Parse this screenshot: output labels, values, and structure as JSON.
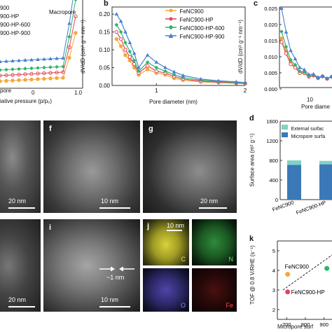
{
  "panels": {
    "a": {
      "legend": [
        "900",
        "900-HP",
        "900-HP-600",
        "900-HP-900"
      ],
      "annotation_macropore": "Macropore",
      "annotation_left": "pore",
      "xlabel": "iative pressure (p/p₀)",
      "xticks": [
        "0",
        "1.0"
      ]
    },
    "b": {
      "label": "b",
      "xlabel": "Pore diameter (nm)",
      "ylabel": "dV/dD (cm³ g⁻¹ nm⁻¹)",
      "yticks": [
        "0.20",
        "0.15",
        "0.10",
        "0.05",
        "0.00"
      ],
      "xticks": [
        "1",
        "2"
      ]
    },
    "c": {
      "label": "c",
      "ylabel": "dV/dD (cm³ g⁻¹ nm⁻¹)",
      "xlabel": "Pore diame",
      "yticks": [
        "0.025",
        "0.020",
        "0.015",
        "0.010",
        "0.005",
        "0.000"
      ],
      "xticks": [
        "10"
      ]
    },
    "d": {
      "label": "d",
      "legend": [
        "External surfac",
        "Micropore surfa"
      ],
      "ylabel": "Surface area (m² g⁻¹)",
      "yticks": [
        "1600",
        "1200",
        "800",
        "400",
        "0"
      ],
      "categories": [
        "FeNC900",
        "FeNC900-HP",
        "FeN"
      ]
    },
    "em": {
      "f_label": "f",
      "g_label": "g",
      "i_label": "i",
      "j_label": "j",
      "scale_20nm": "20 nm",
      "scale_10nm": "10 nm",
      "pore_note": "~1 nm",
      "map_scale": "10 nm",
      "elements": [
        "C",
        "N",
        "O",
        "Fe"
      ]
    },
    "k": {
      "label": "k",
      "ylabel": "TOF @ 0.8 V/RHE (s⁻¹)",
      "xlabel": "Micropore surf",
      "yticks": [
        "5",
        "4",
        "3",
        "2"
      ],
      "xticks": [
        "700",
        "800",
        "900"
      ],
      "points": [
        "FeNC900",
        "FeNC900-HP"
      ]
    }
  },
  "colors": {
    "FeNC900": "#f4a83a",
    "FeNC900-HP": "#e8415a",
    "FeNC900-HP-600": "#2fb36b",
    "FeNC900-HP-900": "#4a7fd0",
    "external": "#7fd3c4",
    "micropore": "#3b78b8"
  },
  "chart_data": [
    {
      "type": "line",
      "panel": "b",
      "xlabel": "Pore diameter (nm)",
      "ylabel": "dV/dD (cm³ g⁻¹ nm⁻¹)",
      "xlim": [
        0.5,
        2.0
      ],
      "ylim": [
        0,
        0.22
      ],
      "series": [
        {
          "name": "FeNC900",
          "color": "#f4a83a",
          "x": [
            0.55,
            0.6,
            0.65,
            0.7,
            0.75,
            0.8,
            0.9,
            1.0,
            1.1,
            1.2,
            1.3,
            1.5,
            1.7,
            1.9,
            2.0
          ],
          "y": [
            0.13,
            0.11,
            0.085,
            0.07,
            0.05,
            0.03,
            0.045,
            0.035,
            0.03,
            0.02,
            0.015,
            0.01,
            0.008,
            0.006,
            0.005
          ]
        },
        {
          "name": "FeNC900-HP",
          "color": "#e8415a",
          "x": [
            0.55,
            0.6,
            0.65,
            0.7,
            0.75,
            0.8,
            0.9,
            1.0,
            1.1,
            1.2,
            1.3,
            1.5,
            1.7,
            1.9,
            2.0
          ],
          "y": [
            0.15,
            0.13,
            0.1,
            0.08,
            0.06,
            0.035,
            0.055,
            0.04,
            0.035,
            0.025,
            0.018,
            0.012,
            0.009,
            0.007,
            0.006
          ]
        },
        {
          "name": "FeNC900-HP-600",
          "color": "#2fb36b",
          "x": [
            0.55,
            0.6,
            0.65,
            0.7,
            0.75,
            0.8,
            0.9,
            1.0,
            1.1,
            1.2,
            1.3,
            1.5,
            1.7,
            1.9,
            2.0
          ],
          "y": [
            0.17,
            0.15,
            0.12,
            0.095,
            0.07,
            0.04,
            0.065,
            0.05,
            0.04,
            0.03,
            0.022,
            0.015,
            0.011,
            0.008,
            0.007
          ]
        },
        {
          "name": "FeNC900-HP-900",
          "color": "#4a7fd0",
          "x": [
            0.55,
            0.6,
            0.65,
            0.7,
            0.75,
            0.8,
            0.9,
            1.0,
            1.1,
            1.2,
            1.3,
            1.5,
            1.7,
            1.9,
            2.0
          ],
          "y": [
            0.2,
            0.18,
            0.15,
            0.12,
            0.09,
            0.05,
            0.085,
            0.065,
            0.05,
            0.038,
            0.028,
            0.018,
            0.013,
            0.01,
            0.008
          ]
        }
      ]
    },
    {
      "type": "bar",
      "panel": "d",
      "categories": [
        "FeNC900",
        "FeNC900-HP"
      ],
      "series": [
        {
          "name": "Micropore surfa",
          "values": [
            710,
            720
          ]
        },
        {
          "name": "External surfac",
          "values": [
            90,
            70
          ]
        }
      ],
      "ylim": [
        0,
        1600
      ]
    },
    {
      "type": "scatter",
      "panel": "k",
      "xlabel": "Micropore surf",
      "ylabel": "TOF @ 0.8 V/RHE (s⁻¹)",
      "points": [
        {
          "name": "FeNC900",
          "x": 705,
          "y": 3.8,
          "color": "#f4a83a"
        },
        {
          "name": "FeNC900-HP",
          "x": 705,
          "y": 2.9,
          "color": "#e8415a"
        },
        {
          "name": "",
          "x": 915,
          "y": 4.1,
          "color": "#2fb36b"
        }
      ]
    }
  ]
}
